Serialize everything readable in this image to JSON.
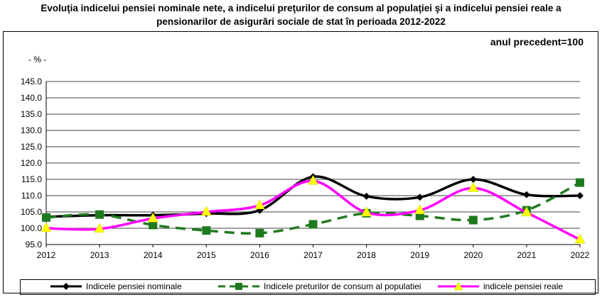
{
  "title_line1": "Evoluţia indicelui pensiei nominale nete, a indicelui preţurilor de consum al populaţiei şi a indicelui pensiei reale a",
  "title_line2": "pensionarilor de asigurări sociale de stat în perioada 2012-2022",
  "subtitle": "anul precedent=100",
  "unit_label": "- % -",
  "colors": {
    "nominal": "#000000",
    "cpi": "#1f7a1f",
    "real": "#ff00ff",
    "real_marker": "#ffff00"
  },
  "chart_data": {
    "type": "line",
    "x": [
      "2012",
      "2013",
      "2014",
      "2015",
      "2016",
      "2017",
      "2018",
      "2019",
      "2020",
      "2021",
      "2022"
    ],
    "ylim": [
      95.0,
      145.0
    ],
    "yticks": [
      "95.0",
      "100.0",
      "105.0",
      "110.0",
      "115.0",
      "120.0",
      "125.0",
      "130.0",
      "135.0",
      "140.0",
      "145.0"
    ],
    "grid": true,
    "legend_position": "bottom",
    "series": [
      {
        "name": "Indicele pensiei nominale",
        "key": "nominal",
        "style": "solid",
        "marker": "diamond",
        "values": [
          103.5,
          104.0,
          104.0,
          104.5,
          105.5,
          115.8,
          109.8,
          109.5,
          115.0,
          110.3,
          110.0
        ]
      },
      {
        "name": "Indicele preturilor de consum al populatiei",
        "key": "cpi",
        "style": "dashed",
        "marker": "square",
        "values": [
          103.3,
          104.2,
          101.0,
          99.3,
          98.5,
          101.2,
          104.6,
          103.8,
          102.5,
          105.5,
          114.0
        ]
      },
      {
        "name": "indicele pensiei reale",
        "key": "real",
        "style": "solid",
        "marker": "triangle",
        "values": [
          100.0,
          99.8,
          103.0,
          105.0,
          107.0,
          114.5,
          104.8,
          105.5,
          112.3,
          104.8,
          96.5
        ]
      }
    ]
  }
}
